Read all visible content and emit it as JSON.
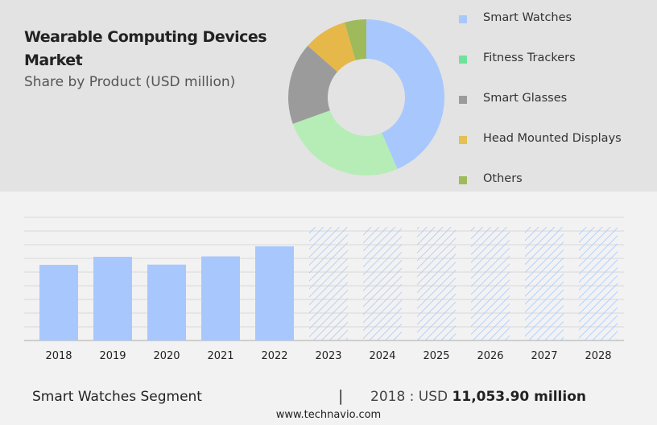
{
  "header": {
    "title": "Wearable Computing Devices Market",
    "subtitle": "Share by Product (USD million)"
  },
  "chart_data": [
    {
      "type": "pie",
      "subtype": "donut",
      "categories": [
        "Smart Watches",
        "Fitness Trackers",
        "Smart Glasses",
        "Head Mounted Displays",
        "Others"
      ],
      "values": [
        43.5,
        26,
        17,
        9,
        4.5
      ],
      "colors": [
        "#a8c8fd",
        "#b6edb6",
        "#9b9b9b",
        "#e6b84a",
        "#9fba5a"
      ],
      "legend_colors": [
        "#a8c8fd",
        "#6fe29b",
        "#9b9b9b",
        "#e3c153",
        "#9fba5a"
      ],
      "legend": "right"
    },
    {
      "type": "bar",
      "categories": [
        "2018",
        "2019",
        "2020",
        "2021",
        "2022",
        "2023",
        "2024",
        "2025",
        "2026",
        "2027",
        "2028"
      ],
      "values": [
        11053.9,
        12230,
        11090,
        12290,
        13760,
        16580,
        16580,
        16580,
        16580,
        16580,
        16580
      ],
      "forecast": [
        false,
        false,
        false,
        false,
        false,
        true,
        true,
        true,
        true,
        true,
        true
      ],
      "ylim": [
        0,
        18000
      ],
      "grid": true,
      "color": "#a8c8fd"
    }
  ],
  "footer": {
    "segment": "Smart Watches Segment",
    "separator": "|",
    "value_prefix": "2018 : USD ",
    "value": "11,053.90 million",
    "url": "www.technavio.com"
  }
}
